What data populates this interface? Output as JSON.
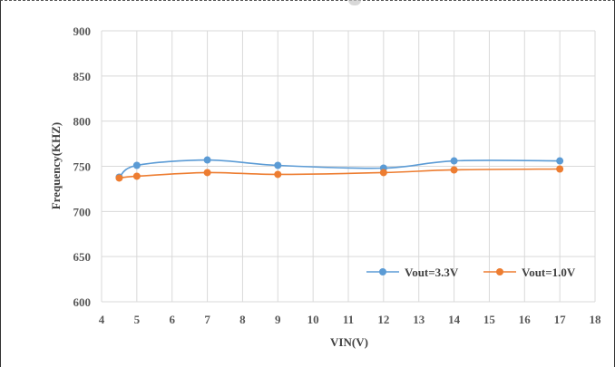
{
  "chart_data": {
    "type": "line",
    "xlabel": "VIN(V)",
    "ylabel": "Frequency(KHZ)",
    "xlim": [
      4,
      18
    ],
    "ylim": [
      600,
      900
    ],
    "xticks": [
      4,
      5,
      6,
      7,
      8,
      9,
      10,
      11,
      12,
      13,
      14,
      15,
      16,
      17,
      18
    ],
    "yticks": [
      600,
      650,
      700,
      750,
      800,
      850,
      900
    ],
    "grid": true,
    "legend_position": "bottom-right",
    "series": [
      {
        "name": "Vout=3.3V",
        "color": "#5b9bd5",
        "x": [
          4.5,
          5,
          7,
          9,
          12,
          14,
          17
        ],
        "y": [
          738,
          751,
          757,
          751,
          748,
          756,
          756
        ]
      },
      {
        "name": "Vout=1.0V",
        "color": "#ed7d31",
        "x": [
          4.5,
          5,
          7,
          9,
          12,
          14,
          17
        ],
        "y": [
          737,
          739,
          743,
          741,
          743,
          746,
          747
        ]
      }
    ]
  }
}
